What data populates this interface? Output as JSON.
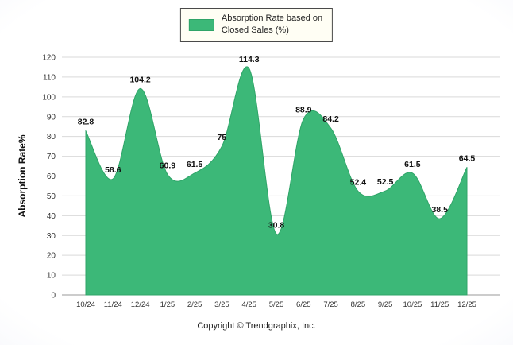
{
  "legend": {
    "label": "Absorption Rate based on\nClosed Sales (%)"
  },
  "footer": {
    "copyright": "Copyright © Trendgraphix, Inc."
  },
  "chart_data": {
    "type": "area",
    "title": "",
    "xlabel": "",
    "ylabel": "Absorption Rate%",
    "series_name": "Absorption Rate based on Closed Sales (%)",
    "categories": [
      "10/24",
      "11/24",
      "12/24",
      "1/25",
      "2/25",
      "3/25",
      "4/25",
      "5/25",
      "6/25",
      "7/25",
      "8/25",
      "9/25",
      "10/25",
      "11/25",
      "12/25"
    ],
    "values": [
      82.8,
      58.6,
      104.2,
      60.9,
      61.5,
      75,
      114.3,
      30.8,
      88.9,
      84.2,
      52.4,
      52.5,
      61.5,
      38.5,
      64.5
    ],
    "ylim": [
      0,
      120
    ],
    "ytick_step": 10,
    "grid": true,
    "legend_position": "top",
    "colors": {
      "area_fill": "#3cb878",
      "area_stroke": "#2fa468",
      "grid": "#d9d9d9",
      "axis": "#999999",
      "data_label": "#111111",
      "tick_label": "#333333"
    }
  }
}
